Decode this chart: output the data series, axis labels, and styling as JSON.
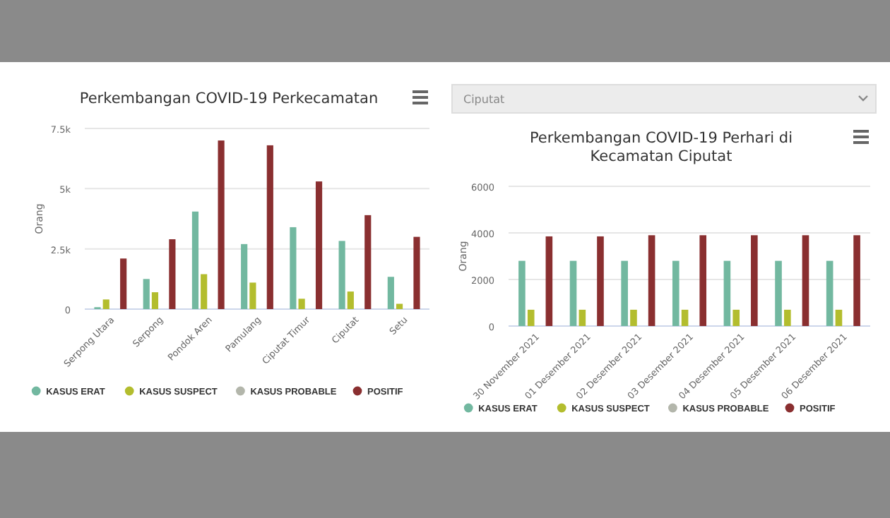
{
  "chart_data": [
    {
      "type": "bar",
      "title": "Perkembangan COVID-19 Perkecamatan",
      "ylabel": "Orang",
      "categories": [
        "Serpong Utara",
        "Serpong",
        "Pondok Aren",
        "Pamulang",
        "Ciputat Timur",
        "Ciputat",
        "Setu"
      ],
      "series": [
        {
          "name": "KASUS ERAT",
          "color": "#72b8a0",
          "values": [
            80,
            1250,
            4050,
            2700,
            3400,
            2830,
            1340
          ]
        },
        {
          "name": "KASUS SUSPECT",
          "color": "#b3bd2e",
          "values": [
            400,
            700,
            1450,
            1100,
            430,
            730,
            220
          ]
        },
        {
          "name": "KASUS PROBABLE",
          "color": "#b3b6ab",
          "values": [
            0,
            0,
            0,
            0,
            0,
            0,
            0
          ]
        },
        {
          "name": "POSITIF",
          "color": "#8a2f30",
          "values": [
            2100,
            2900,
            7000,
            6800,
            5300,
            3900,
            3000
          ]
        }
      ],
      "ylim": [
        0,
        7500
      ],
      "yticks": [
        {
          "value": 0,
          "label": "0"
        },
        {
          "value": 2500,
          "label": "2.5k"
        },
        {
          "value": 5000,
          "label": "5k"
        },
        {
          "value": 7500,
          "label": "7.5k"
        }
      ],
      "grid": "y",
      "legend": "bottom"
    },
    {
      "type": "bar",
      "title": "Perkembangan COVID-19 Perhari di Kecamatan Ciputat",
      "ylabel": "Orang",
      "annotations": [
        "Ciputat"
      ],
      "categories": [
        "30 November 2021",
        "01 Desember 2021",
        "02 Desember 2021",
        "03 Desember 2021",
        "04 Desember 2021",
        "05 Desember 2021",
        "06 Desember 2021"
      ],
      "series": [
        {
          "name": "KASUS ERAT",
          "color": "#72b8a0",
          "values": [
            2800,
            2800,
            2800,
            2800,
            2800,
            2800,
            2800
          ]
        },
        {
          "name": "KASUS SUSPECT",
          "color": "#b3bd2e",
          "values": [
            700,
            700,
            700,
            700,
            700,
            700,
            700
          ]
        },
        {
          "name": "KASUS PROBABLE",
          "color": "#b3b6ab",
          "values": [
            0,
            0,
            0,
            0,
            0,
            0,
            0
          ]
        },
        {
          "name": "POSITIF",
          "color": "#8a2f30",
          "values": [
            3850,
            3850,
            3900,
            3900,
            3900,
            3900,
            3900
          ]
        }
      ],
      "ylim": [
        0,
        6000
      ],
      "yticks": [
        0,
        2000,
        4000,
        6000
      ],
      "grid": "y",
      "legend": "bottom"
    }
  ]
}
